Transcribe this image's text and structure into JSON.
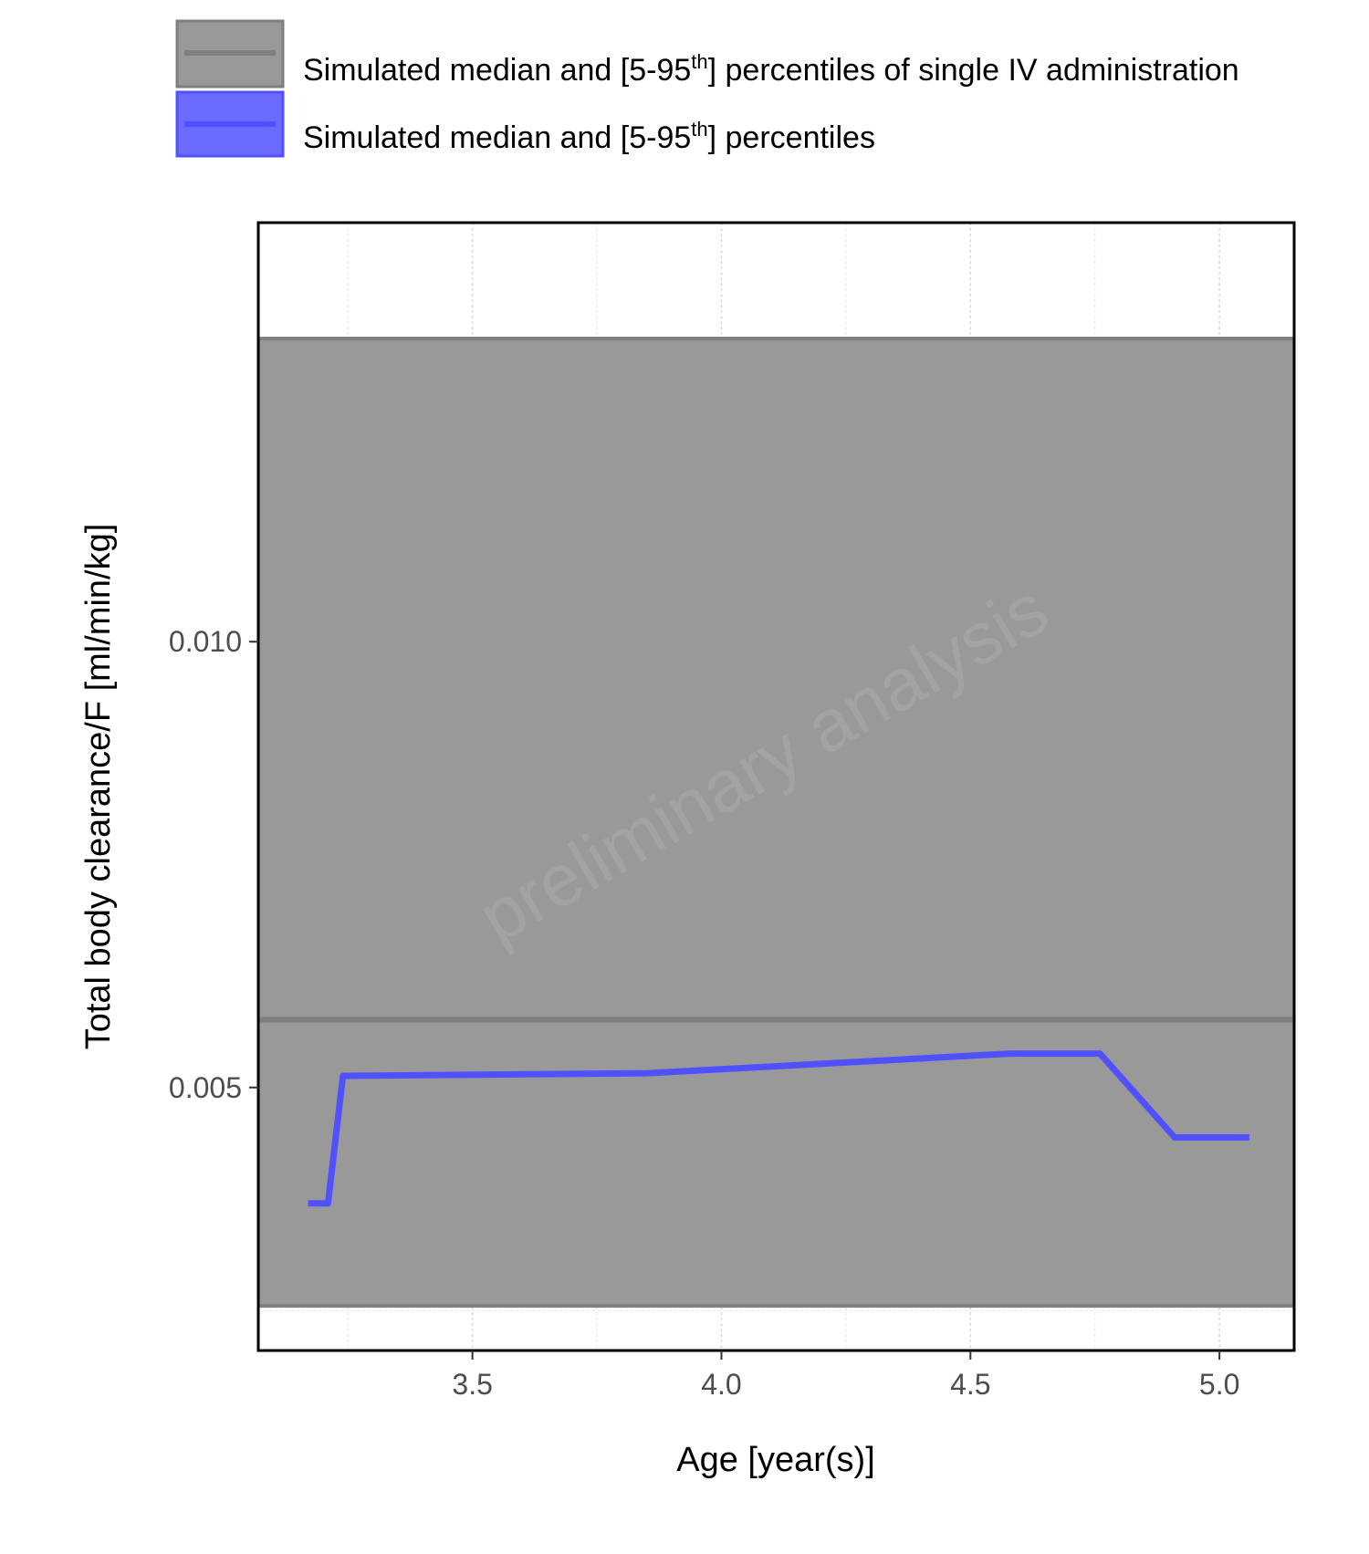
{
  "chart_data": {
    "type": "line",
    "xlabel": "Age [year(s)]",
    "ylabel": "Total body clearance/F [ml/min/kg]",
    "xlim": [
      3.07,
      5.15
    ],
    "ylim": [
      0.00205,
      0.0147
    ],
    "x_ticks": [
      "3.5",
      "4.0",
      "4.5",
      "5.0"
    ],
    "x_tick_values": [
      3.5,
      4.0,
      4.5,
      5.0
    ],
    "y_ticks": [
      "0.005",
      "0.010"
    ],
    "y_tick_values": [
      0.005,
      0.01
    ],
    "grid": true,
    "legend_position": "top",
    "watermark": "preliminary analysis",
    "series": [
      {
        "name_pre": "Simulated median and [5-95",
        "name_sup": "th",
        "name_post": "] percentiles of single IV administration",
        "color": "#7f7f7f",
        "fill": "#999999",
        "type": "band",
        "median": 0.00576,
        "lower": 0.00255,
        "upper": 0.0134
      },
      {
        "name_pre": "Simulated median and [5-95",
        "name_sup": "th",
        "name_post": "] percentiles",
        "color": "#5050ff",
        "fill": "#6b6bff",
        "type": "line",
        "x": [
          3.17,
          3.21,
          3.24,
          3.85,
          4.58,
          4.76,
          4.91,
          5.06
        ],
        "y": [
          0.0037,
          0.0037,
          0.00513,
          0.00516,
          0.00538,
          0.00538,
          0.00444,
          0.00444
        ]
      }
    ]
  }
}
